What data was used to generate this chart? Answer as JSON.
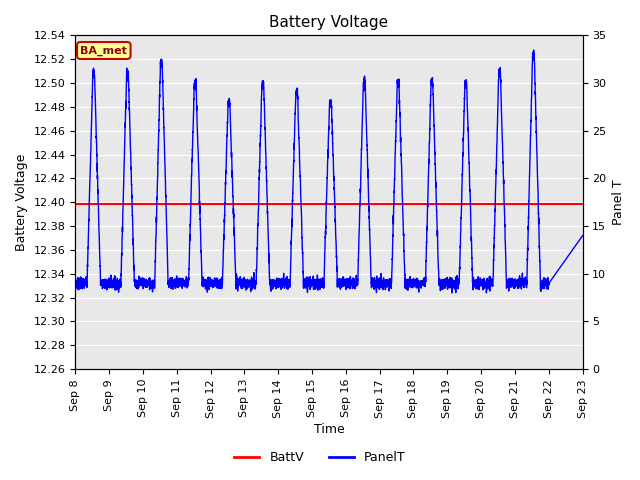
{
  "title": "Battery Voltage",
  "xlabel": "Time",
  "ylabel_left": "Battery Voltage",
  "ylabel_right": "Panel T",
  "ylim_left": [
    12.26,
    12.54
  ],
  "ylim_right": [
    0,
    35
  ],
  "x_tick_labels": [
    "Sep 8",
    "Sep 9",
    "Sep 10",
    "Sep 11",
    "Sep 12",
    "Sep 13",
    "Sep 14",
    "Sep 15",
    "Sep 16",
    "Sep 17",
    "Sep 18",
    "Sep 19",
    "Sep 20",
    "Sep 21",
    "Sep 22",
    "Sep 23"
  ],
  "battv_value": 12.3985,
  "battv_color": "#ff0000",
  "panelt_color": "#0000ff",
  "annotation_text": "BA_met",
  "annotation_bg": "#ffff99",
  "annotation_border": "#cc0000",
  "bg_color": "#e8e8e8",
  "fig_bg": "#ffffff",
  "title_fontsize": 11,
  "label_fontsize": 9,
  "tick_fontsize": 8,
  "legend_fontsize": 9
}
